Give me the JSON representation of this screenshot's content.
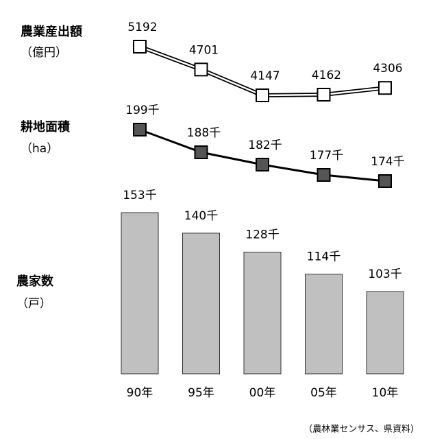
{
  "chart_data": [
    {
      "type": "line",
      "title": "農業産出額",
      "unit": "（億円）",
      "style": "double",
      "color": "#ffffff",
      "values": [
        5192,
        4701,
        4147,
        4162,
        4306
      ]
    },
    {
      "type": "line",
      "title": "耕地面積",
      "unit": "（ha）",
      "style": "solid",
      "color": "#555555",
      "values": [
        199000,
        188000,
        182000,
        177000,
        174000
      ],
      "value_labels": [
        "199千",
        "188千",
        "182千",
        "177千",
        "174千"
      ]
    },
    {
      "type": "bar",
      "title": "農家数",
      "unit": "（戸）",
      "color": "#c0c0c0",
      "categories": [
        "90年",
        "95年",
        "00年",
        "05年",
        "10年"
      ],
      "values": [
        153000,
        140000,
        128000,
        114000,
        103000
      ],
      "value_labels": [
        "153千",
        "140千",
        "128千",
        "114千",
        "103千"
      ]
    }
  ],
  "source": "（農林業センサス、県資料）"
}
